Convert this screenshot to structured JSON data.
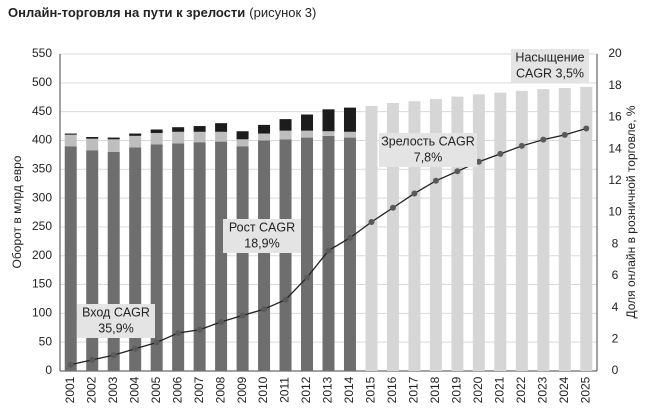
{
  "chart_data": {
    "type": "bar",
    "title": "Онлайн-торговля на пути к зрелости",
    "subtitle": "(рисунок 3)",
    "ylabel": "Оборот в млрд евро",
    "y2label": "Доля онлайн в розничной торговле, %",
    "categories": [
      "2001",
      "2002",
      "2003",
      "2004",
      "2005",
      "2006",
      "2007",
      "2008",
      "2009",
      "2010",
      "2011",
      "2012",
      "2013",
      "2014",
      "2015",
      "2016",
      "2017",
      "2018",
      "2019",
      "2020",
      "2021",
      "2022",
      "2023",
      "2024",
      "2025"
    ],
    "series": [
      {
        "color": "#6e6e6e",
        "values": [
          390,
          383,
          380,
          388,
          393,
          395,
          397,
          398,
          390,
          400,
          402,
          405,
          408,
          405,
          null,
          null,
          null,
          null,
          null,
          null,
          null,
          null,
          null,
          null,
          null
        ]
      },
      {
        "color": "#bebebe",
        "values": [
          20,
          20,
          22,
          20,
          20,
          20,
          18,
          17,
          12,
          12,
          15,
          12,
          8,
          10,
          null,
          null,
          null,
          null,
          null,
          null,
          null,
          null,
          null,
          null,
          null
        ]
      },
      {
        "color": "#1c1c1c",
        "values": [
          2,
          3,
          3,
          4,
          6,
          8,
          10,
          15,
          14,
          15,
          20,
          28,
          38,
          42,
          null,
          null,
          null,
          null,
          null,
          null,
          null,
          null,
          null,
          null,
          null
        ]
      },
      {
        "color": "#d6d6d6",
        "values": [
          null,
          null,
          null,
          null,
          null,
          null,
          null,
          null,
          null,
          null,
          null,
          null,
          null,
          null,
          460,
          465,
          468,
          472,
          476,
          480,
          483,
          486,
          489,
          491,
          493
        ]
      },
      {
        "type": "line",
        "axis": "y2",
        "color": "#222222",
        "marker_color": "#5a5a5a",
        "values": [
          0.4,
          0.7,
          1.0,
          1.4,
          1.8,
          2.4,
          2.6,
          3.1,
          3.5,
          3.9,
          4.5,
          5.9,
          7.6,
          8.4,
          9.4,
          10.3,
          11.2,
          12.0,
          12.6,
          13.2,
          13.7,
          14.2,
          14.6,
          14.9,
          15.3
        ]
      }
    ],
    "stacked": true,
    "ylim": [
      0,
      550
    ],
    "yticks": [
      0,
      50,
      100,
      150,
      200,
      250,
      300,
      350,
      400,
      450,
      500,
      550
    ],
    "y2lim": [
      0,
      20
    ],
    "y2ticks": [
      0,
      2,
      4,
      6,
      8,
      10,
      12,
      14,
      16,
      18,
      20
    ],
    "grid": true,
    "annotations": [
      {
        "lines": [
          "Вход CAGR",
          "35,9%"
        ]
      },
      {
        "lines": [
          "Рост CAGR",
          "18,9%"
        ]
      },
      {
        "lines": [
          "Зрелость CAGR",
          "7,8%"
        ]
      },
      {
        "lines": [
          "Насыщение",
          "CAGR 3,5%"
        ]
      }
    ]
  }
}
